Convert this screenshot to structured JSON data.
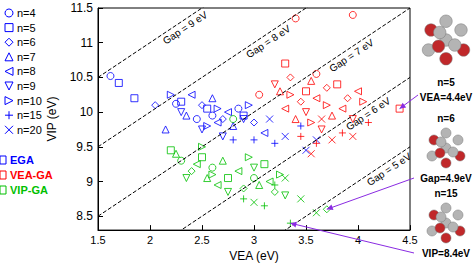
{
  "chart_data": {
    "type": "scatter",
    "xlabel": "VEA (eV)",
    "ylabel": "VIP (eV)",
    "xlim": [
      1.5,
      4.5
    ],
    "xticks": [
      1.5,
      2,
      2.5,
      3,
      3.5,
      4,
      4.5
    ],
    "ylim": [
      8.3,
      11.5
    ],
    "yticks": [
      8.5,
      9,
      9.5,
      10,
      10.5,
      11,
      11.5
    ],
    "legend": "left",
    "markers": [
      {
        "name": "n=4",
        "marker": "circle"
      },
      {
        "name": "n=5",
        "marker": "square"
      },
      {
        "name": "n=6",
        "marker": "diamond"
      },
      {
        "name": "n=7",
        "marker": "triangle_up"
      },
      {
        "name": "n=8",
        "marker": "triangle_left"
      },
      {
        "name": "n=9",
        "marker": "triangle_down"
      },
      {
        "name": "n=10",
        "marker": "triangle_right"
      },
      {
        "name": "n=15",
        "marker": "plus"
      },
      {
        "name": "n=20",
        "marker": "x"
      }
    ],
    "series": [
      {
        "name": "EGA",
        "color": "#0000ff",
        "groups": [
          {
            "n": "n=4",
            "points": [
              [
                1.62,
                10.52
              ],
              [
                2.25,
                10.12
              ],
              [
                2.6,
                9.95
              ],
              [
                2.85,
                10.05
              ],
              [
                2.45,
                9.9
              ]
            ]
          },
          {
            "n": "n=5",
            "points": [
              [
                1.7,
                10.42
              ],
              [
                1.85,
                10.2
              ],
              [
                2.3,
                10.15
              ],
              [
                2.55,
                10.05
              ],
              [
                2.9,
                9.95
              ]
            ]
          },
          {
            "n": "n=6",
            "points": [
              [
                2.05,
                10.1
              ],
              [
                2.5,
                10.1
              ],
              [
                2.7,
                9.9
              ],
              [
                3.0,
                9.85
              ]
            ]
          },
          {
            "n": "n=7",
            "points": [
              [
                2.35,
                9.95
              ],
              [
                2.6,
                10.2
              ],
              [
                2.8,
                9.8
              ],
              [
                2.15,
                9.75
              ]
            ]
          },
          {
            "n": "n=8",
            "points": [
              [
                2.4,
                10.25
              ],
              [
                2.65,
                9.85
              ],
              [
                2.75,
                10.0
              ],
              [
                3.1,
                9.7
              ]
            ]
          },
          {
            "n": "n=9",
            "points": [
              [
                2.5,
                9.75
              ],
              [
                2.7,
                9.65
              ],
              [
                2.9,
                9.9
              ],
              [
                2.3,
                10.0
              ]
            ]
          },
          {
            "n": "n=10",
            "points": [
              [
                2.2,
                10.25
              ],
              [
                2.55,
                9.8
              ],
              [
                2.95,
                10.1
              ],
              [
                2.65,
                10.05
              ]
            ]
          },
          {
            "n": "n=15",
            "points": [
              [
                3.2,
                9.55
              ],
              [
                2.8,
                9.6
              ],
              [
                3.45,
                9.8
              ],
              [
                3.0,
                9.6
              ]
            ]
          },
          {
            "n": "n=20",
            "points": [
              [
                3.3,
                9.65
              ],
              [
                3.6,
                9.6
              ],
              [
                3.15,
                9.9
              ],
              [
                3.5,
                9.45
              ]
            ]
          }
        ]
      },
      {
        "name": "VEA-GA",
        "color": "#ff0000",
        "groups": [
          {
            "n": "n=4",
            "points": [
              [
                3.4,
                11.35
              ],
              [
                3.95,
                11.4
              ],
              [
                3.05,
                10.25
              ],
              [
                3.6,
                10.55
              ]
            ]
          },
          {
            "n": "n=5",
            "points": [
              [
                3.3,
                10.7
              ],
              [
                3.5,
                10.3
              ],
              [
                4.4,
                10.05
              ],
              [
                3.8,
                10.4
              ]
            ]
          },
          {
            "n": "n=6",
            "points": [
              [
                3.45,
                10.15
              ],
              [
                3.7,
                10.35
              ],
              [
                3.35,
                10.5
              ],
              [
                3.9,
                10.2
              ]
            ]
          },
          {
            "n": "n=7",
            "points": [
              [
                3.25,
                10.3
              ],
              [
                3.55,
                10.45
              ],
              [
                3.75,
                9.95
              ],
              [
                3.4,
                9.9
              ]
            ]
          },
          {
            "n": "n=8",
            "points": [
              [
                3.6,
                10.2
              ],
              [
                3.85,
                10.05
              ],
              [
                3.3,
                10.05
              ],
              [
                4.0,
                10.3
              ]
            ]
          },
          {
            "n": "n=9",
            "points": [
              [
                3.5,
                10.0
              ],
              [
                3.65,
                9.75
              ],
              [
                3.2,
                10.4
              ],
              [
                3.95,
                9.9
              ]
            ]
          },
          {
            "n": "n=10",
            "points": [
              [
                3.35,
                10.25
              ],
              [
                3.7,
                10.1
              ],
              [
                3.55,
                9.85
              ],
              [
                4.05,
                10.15
              ]
            ]
          },
          {
            "n": "n=15",
            "points": [
              [
                3.6,
                9.55
              ],
              [
                3.85,
                9.7
              ],
              [
                3.45,
                9.65
              ],
              [
                4.1,
                9.85
              ]
            ]
          },
          {
            "n": "n=20",
            "points": [
              [
                3.75,
                9.6
              ],
              [
                3.95,
                9.65
              ],
              [
                3.55,
                9.4
              ],
              [
                3.65,
                9.9
              ]
            ]
          }
        ]
      },
      {
        "name": "VIP-GA",
        "color": "#00c000",
        "groups": [
          {
            "n": "n=4",
            "points": [
              [
                2.3,
                9.3
              ],
              [
                2.6,
                9.2
              ],
              [
                2.8,
                9.9
              ],
              [
                3.0,
                9.05
              ]
            ]
          },
          {
            "n": "n=5",
            "points": [
              [
                2.2,
                9.45
              ],
              [
                2.5,
                9.35
              ],
              [
                2.75,
                9.05
              ],
              [
                3.1,
                9.25
              ]
            ]
          },
          {
            "n": "n=6",
            "points": [
              [
                2.4,
                9.15
              ],
              [
                2.9,
                8.9
              ],
              [
                3.7,
                8.6
              ],
              [
                3.2,
                8.85
              ]
            ]
          },
          {
            "n": "n=7",
            "points": [
              [
                2.25,
                9.4
              ],
              [
                2.55,
                9.05
              ],
              [
                3.05,
                8.95
              ],
              [
                2.7,
                9.3
              ]
            ]
          },
          {
            "n": "n=8",
            "points": [
              [
                2.45,
                9.25
              ],
              [
                2.85,
                9.15
              ],
              [
                3.15,
                9.0
              ],
              [
                2.65,
                8.95
              ]
            ]
          },
          {
            "n": "n=9",
            "points": [
              [
                2.35,
                9.05
              ],
              [
                2.75,
                8.85
              ],
              [
                3.0,
                9.2
              ],
              [
                3.3,
                8.8
              ]
            ]
          },
          {
            "n": "n=10",
            "points": [
              [
                2.5,
                9.5
              ],
              [
                2.95,
                9.35
              ],
              [
                3.25,
                9.1
              ],
              [
                2.6,
                9.1
              ]
            ]
          },
          {
            "n": "n=15",
            "points": [
              [
                2.9,
                8.75
              ],
              [
                3.1,
                8.65
              ],
              [
                3.35,
                8.4
              ],
              [
                3.2,
                8.95
              ]
            ]
          },
          {
            "n": "n=20",
            "points": [
              [
                3.0,
                8.7
              ],
              [
                3.45,
                8.75
              ],
              [
                3.6,
                8.55
              ],
              [
                3.3,
                9.05
              ]
            ]
          }
        ]
      }
    ],
    "gap_lines": [
      {
        "gap": 9,
        "label": "Gap = 9 eV"
      },
      {
        "gap": 8,
        "label": "Gap = 8 eV"
      },
      {
        "gap": 7,
        "label": "Gap = 7 eV"
      },
      {
        "gap": 6,
        "label": "Gap = 6 eV"
      },
      {
        "gap": 5,
        "label": "Gap = 5 eV"
      }
    ],
    "line_style": "dashed",
    "annotations": [
      {
        "texts": [
          "n=5",
          "VEA=4.4eV"
        ],
        "point": [
          4.4,
          10.05
        ]
      },
      {
        "texts": [
          "n=6",
          "Gap=4.9eV"
        ],
        "point": [
          3.7,
          8.6
        ]
      },
      {
        "texts": [
          "n=15",
          "VIP=8.4eV"
        ],
        "point": [
          3.35,
          8.4
        ]
      }
    ]
  }
}
